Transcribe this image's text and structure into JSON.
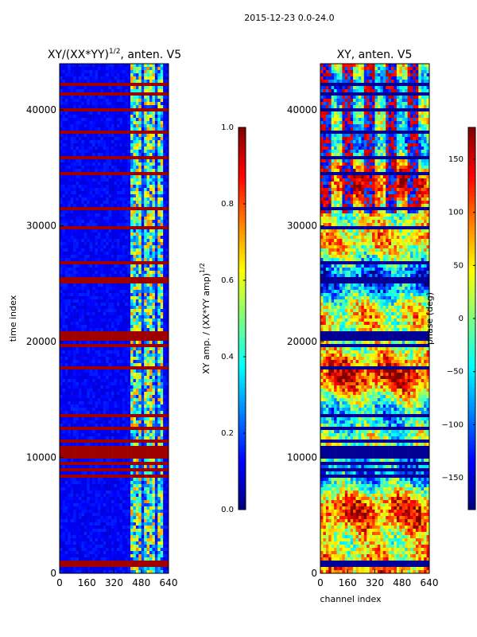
{
  "figure_title": "2015-12-23 0.0-24.0",
  "chart_data": [
    {
      "type": "heatmap",
      "title": "XY/(XX*YY)^1/2, anten. V5",
      "title_main": "XY/(XX*YY)",
      "title_sup": "1/2",
      "title_suffix": ", anten. V5",
      "xlabel": "",
      "ylabel": "time index",
      "xlim": [
        0,
        640
      ],
      "ylim": [
        0,
        44000
      ],
      "x_ticks": [
        0,
        160,
        320,
        480,
        640
      ],
      "y_ticks": [
        0,
        10000,
        20000,
        30000,
        40000
      ],
      "colormap": "jet",
      "colorbar": {
        "label": "XY amp. / (XX*YY amp)^1/2",
        "label_main": "XY amp. / (XX*YY amp)",
        "label_sup": "1/2",
        "range": [
          0.0,
          1.0
        ],
        "ticks": [
          "0.0",
          "0.2",
          "0.4",
          "0.6",
          "0.8",
          "1.0"
        ]
      },
      "background_value": 0.08,
      "high_channel_band": [
        420,
        610
      ],
      "flagged_time_rows": [
        600,
        1000,
        8500,
        9000,
        9500,
        10000,
        10300,
        10600,
        10900,
        11500,
        12500,
        13600,
        14300,
        17800,
        19700,
        20100,
        20500,
        20800,
        25200,
        25500,
        26800,
        29800,
        31500,
        33000,
        34400,
        35900,
        36300,
        38200,
        40100,
        41300,
        42300
      ]
    },
    {
      "type": "heatmap",
      "title": "XY, anten. V5",
      "xlabel": "channel index",
      "ylabel": "",
      "xlim": [
        0,
        640
      ],
      "ylim": [
        0,
        44000
      ],
      "x_ticks": [
        0,
        160,
        320,
        480,
        640
      ],
      "y_ticks": [
        0,
        10000,
        20000,
        30000,
        40000
      ],
      "colormap": "jet",
      "colorbar": {
        "label": "phase (deg)",
        "range": [
          -180,
          180
        ],
        "ticks": [
          "−150",
          "−100",
          "−50",
          "0",
          "50",
          "100",
          "150"
        ],
        "tick_values": [
          -150,
          -100,
          -50,
          0,
          50,
          100,
          150
        ]
      },
      "flagged_time_rows": [
        600,
        1000,
        8500,
        9000,
        9500,
        10000,
        10300,
        10600,
        10900,
        11500,
        12500,
        13600,
        14300,
        17800,
        19700,
        20100,
        20500,
        20800,
        25200,
        25500,
        26800,
        29800,
        31500,
        33000,
        34400,
        35900,
        36300,
        38200,
        40100,
        41300,
        42300
      ]
    }
  ]
}
